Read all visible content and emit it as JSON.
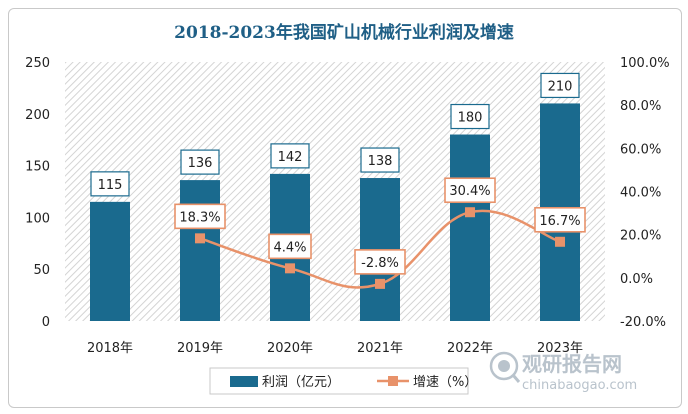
{
  "chart_data": {
    "type": "bar",
    "title": "2018-2023年我国矿山机械行业利润及增速",
    "categories": [
      "2018年",
      "2019年",
      "2020年",
      "2021年",
      "2022年",
      "2023年"
    ],
    "series": [
      {
        "name": "利润（亿元）",
        "type": "bar",
        "axis": "left",
        "values": [
          115,
          136,
          142,
          138,
          180,
          210
        ],
        "labels": [
          "115",
          "136",
          "142",
          "138",
          "180",
          "210"
        ],
        "color": "#1a6a8e"
      },
      {
        "name": "增速（%）",
        "type": "line",
        "axis": "right",
        "values": [
          null,
          18.3,
          4.4,
          -2.8,
          30.4,
          16.7
        ],
        "labels": [
          "",
          "18.3%",
          "4.4%",
          "-2.8%",
          "30.4%",
          "16.7%"
        ],
        "color": "#e8926a"
      }
    ],
    "ylim": [
      0,
      250
    ],
    "yticks": [
      "0",
      "50",
      "100",
      "150",
      "200",
      "250"
    ],
    "y2lim": [
      -20,
      100
    ],
    "y2ticks": [
      "-20.0%",
      "0.0%",
      "20.0%",
      "40.0%",
      "60.0%",
      "80.0%",
      "100.0%"
    ],
    "legend_position": "bottom",
    "background": "hatched"
  },
  "watermark": {
    "text_cn": "观研报告网",
    "text_en": "chinabaogao.com",
    "color": "#b9c3cc"
  }
}
